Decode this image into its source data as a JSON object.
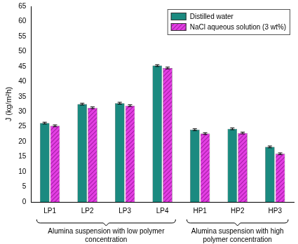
{
  "chart_data": {
    "type": "bar",
    "categories": [
      "LP1",
      "LP2",
      "LP3",
      "LP4",
      "HP1",
      "HP2",
      "HP3"
    ],
    "series": [
      {
        "name": "Distilled water",
        "color": "#1b8a80",
        "values": [
          26.2,
          32.5,
          32.8,
          45.3,
          24.0,
          24.3,
          18.3
        ],
        "errors": [
          0.3,
          0.3,
          0.3,
          0.3,
          0.3,
          0.3,
          0.3
        ]
      },
      {
        "name": "NaCl aqueous solution (3 wt%)",
        "color": "#e33fe3",
        "values": [
          25.3,
          31.3,
          32.0,
          44.5,
          22.7,
          22.9,
          16.0
        ],
        "errors": [
          0.3,
          0.3,
          0.3,
          0.3,
          0.3,
          0.3,
          0.3
        ]
      }
    ],
    "y_label": "J (kg/m²h)",
    "ylim": [
      0,
      65
    ],
    "yticks": [
      0,
      5,
      10,
      15,
      20,
      25,
      30,
      35,
      40,
      45,
      50,
      55,
      60,
      65
    ],
    "grid": false,
    "legend": "upper right",
    "annotations": [
      {
        "text": "Alumina suspension with low polymer concentration",
        "from": "LP1",
        "to": "LP4"
      },
      {
        "text": "Alumina suspension with high polymer concentration",
        "from": "HP1",
        "to": "HP3"
      }
    ]
  }
}
